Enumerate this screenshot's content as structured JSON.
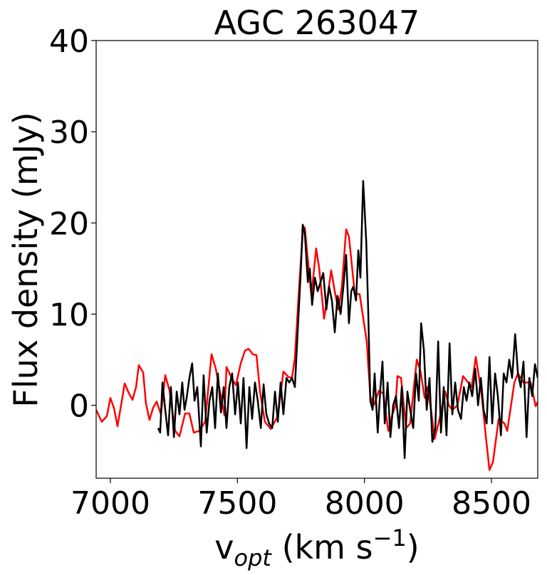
{
  "chart_data": {
    "type": "line",
    "title": "AGC 263047",
    "xlabel_parts": [
      "v",
      "opt",
      " (km s",
      "−1",
      ")"
    ],
    "ylabel": "Flux density (mJy)",
    "xlim": [
      6944,
      8682
    ],
    "ylim": [
      -8,
      40
    ],
    "xticks": [
      7000,
      7500,
      8000,
      8500
    ],
    "yticks": [
      0,
      10,
      20,
      30,
      40
    ],
    "series": [
      {
        "color": "#ff0000",
        "x": [
          6944,
          6966,
          6986,
          7000,
          7014,
          7028,
          7048,
          7056,
          7073,
          7087,
          7101,
          7112,
          7129,
          7140,
          7154,
          7168,
          7182,
          7199,
          7216,
          7233,
          7255,
          7272,
          7294,
          7311,
          7328,
          7350,
          7373,
          7398,
          7415,
          7435,
          7449,
          7457,
          7477,
          7494,
          7513,
          7530,
          7544,
          7561,
          7575,
          7589,
          7608,
          7631,
          7659,
          7681,
          7701,
          7715,
          7726,
          7743,
          7757,
          7765,
          7777,
          7791,
          7810,
          7822,
          7841,
          7855,
          7869,
          7883,
          7897,
          7911,
          7928,
          7939,
          7962,
          7981,
          8009,
          8023,
          8037,
          8057,
          8074,
          8094,
          8108,
          8122,
          8130,
          8144,
          8164,
          8180,
          8192,
          8206,
          8220,
          8237,
          8248,
          8262,
          8276,
          8298,
          8318,
          8332,
          8346,
          8366,
          8388,
          8408,
          8422,
          8438,
          8461,
          8478,
          8492,
          8506,
          8528,
          8551,
          8562,
          8590,
          8604,
          8626,
          8640,
          8654,
          8674,
          8682
        ],
        "values": [
          -0.5,
          -1.8,
          -1.2,
          0.8,
          -0.3,
          -2.3,
          1.0,
          2.4,
          1.3,
          0.6,
          2.0,
          4.4,
          3.6,
          0.2,
          -1.6,
          -0.3,
          0.4,
          -1.0,
          3.3,
          1.6,
          -2.8,
          -3.4,
          -0.9,
          -0.9,
          -3.0,
          -2.8,
          -1.8,
          5.6,
          4.0,
          1.0,
          -1.1,
          4.2,
          3.0,
          2.2,
          4.6,
          6.0,
          6.2,
          5.6,
          5.5,
          1.5,
          -1.8,
          -2.6,
          -1.2,
          3.7,
          3.1,
          3.0,
          5.2,
          13.0,
          18.8,
          19.5,
          16.0,
          12.0,
          17.2,
          15.0,
          9.5,
          12.0,
          14.8,
          12.5,
          10.5,
          13.0,
          19.3,
          18.5,
          12.2,
          12.2,
          7.0,
          1.0,
          0.0,
          1.6,
          1.3,
          -2.8,
          -1.2,
          0.0,
          3.2,
          3.0,
          -2.5,
          -2.0,
          1.3,
          5.0,
          3.8,
          0.8,
          2.0,
          -0.5,
          -3.7,
          -1.2,
          1.5,
          0.0,
          -0.5,
          0.0,
          3.2,
          2.5,
          2.0,
          5.3,
          1.2,
          -3.5,
          -7.1,
          -6.2,
          -1.5,
          -2.0,
          -2.8,
          2.5,
          3.5,
          2.5,
          2.5,
          2.5,
          -0.1,
          0.4
        ]
      },
      {
        "color": "#000000",
        "x": [
          7188,
          7196,
          7205,
          7216,
          7227,
          7238,
          7250,
          7261,
          7272,
          7283,
          7292,
          7300,
          7311,
          7322,
          7331,
          7342,
          7356,
          7367,
          7379,
          7390,
          7401,
          7412,
          7423,
          7435,
          7446,
          7457,
          7468,
          7479,
          7491,
          7502,
          7513,
          7524,
          7536,
          7547,
          7558,
          7569,
          7580,
          7592,
          7603,
          7614,
          7625,
          7637,
          7648,
          7659,
          7670,
          7681,
          7693,
          7704,
          7715,
          7726,
          7737,
          7749,
          7757,
          7765,
          7777,
          7785,
          7794,
          7805,
          7816,
          7827,
          7838,
          7850,
          7861,
          7872,
          7883,
          7894,
          7906,
          7917,
          7928,
          7939,
          7948,
          7956,
          7967,
          7976,
          7984,
          7995,
          8007,
          8015,
          8023,
          8032,
          8040,
          8052,
          8063,
          8071,
          8080,
          8091,
          8102,
          8113,
          8124,
          8136,
          8147,
          8158,
          8169,
          8180,
          8192,
          8203,
          8214,
          8223,
          8234,
          8245,
          8256,
          8267,
          8279,
          8290,
          8301,
          8312,
          8323,
          8335,
          8346,
          8357,
          8368,
          8380,
          8391,
          8402,
          8413,
          8424,
          8436,
          8447,
          8458,
          8469,
          8481,
          8492,
          8503,
          8514,
          8525,
          8537,
          8548,
          8559,
          8570,
          8581,
          8593,
          8604,
          8615,
          8626,
          8638,
          8649,
          8660,
          8671,
          8682
        ],
        "values": [
          -2.5,
          -3.0,
          2.5,
          -0.5,
          -3.3,
          2.0,
          -3.5,
          1.5,
          -1.0,
          2.5,
          -0.5,
          0.8,
          3.0,
          4.6,
          0.5,
          2.0,
          -4.5,
          3.3,
          -3.0,
          0.5,
          2.0,
          -2.5,
          3.5,
          -0.8,
          2.0,
          -2.5,
          2.0,
          3.5,
          -1.0,
          2.5,
          -2.0,
          3.0,
          -4.7,
          2.0,
          -1.5,
          2.5,
          0.5,
          -2.5,
          2.3,
          -1.0,
          -2.0,
          -2.5,
          1.5,
          -1.8,
          2.5,
          -1.0,
          3.0,
          2.5,
          3.0,
          2.0,
          8.0,
          14.5,
          19.8,
          19.0,
          13.5,
          15.0,
          11.0,
          14.0,
          12.5,
          13.5,
          14.5,
          10.5,
          13.0,
          11.5,
          8.0,
          12.0,
          10.0,
          13.0,
          16.5,
          9.0,
          12.5,
          13.0,
          11.5,
          17.0,
          14.0,
          24.6,
          18.0,
          10.0,
          0.5,
          -0.5,
          3.5,
          -3.0,
          2.0,
          4.8,
          -2.0,
          2.5,
          -3.5,
          0.0,
          1.0,
          -2.5,
          2.0,
          -5.8,
          1.5,
          -0.5,
          -2.5,
          3.5,
          0.5,
          9.0,
          6.0,
          -0.5,
          3.0,
          -4.0,
          -2.5,
          7.0,
          -3.0,
          2.0,
          -3.3,
          6.8,
          -1.0,
          2.5,
          -0.5,
          -1.5,
          2.0,
          0.5,
          2.5,
          1.0,
          4.0,
          0.0,
          3.0,
          -0.5,
          -2.0,
          5.3,
          -2.0,
          3.5,
          1.0,
          -3.3,
          3.5,
          2.5,
          5.0,
          3.0,
          7.8,
          3.5,
          2.0,
          4.8,
          -3.5,
          3.0,
          1.0,
          4.5,
          3.0
        ]
      }
    ]
  }
}
